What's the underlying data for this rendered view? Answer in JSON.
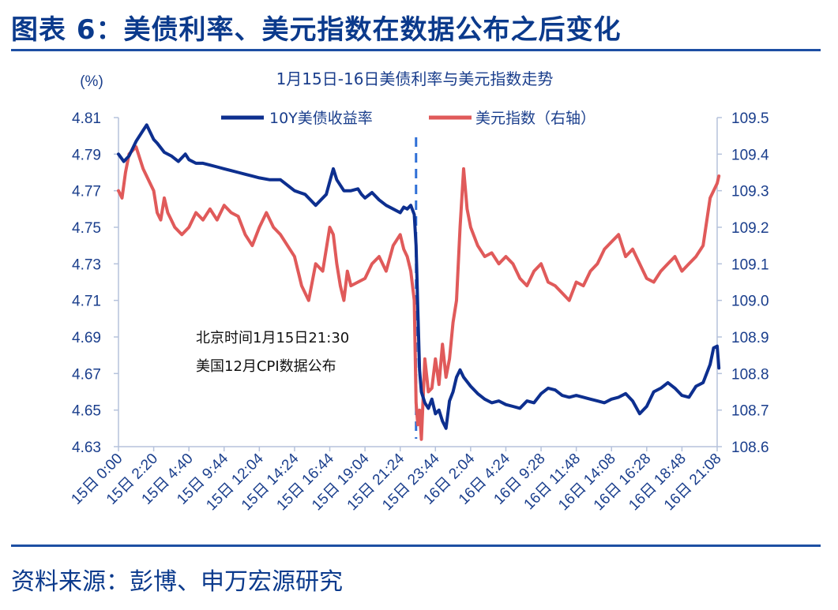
{
  "figure_title": "图表 6：美债利率、美元指数在数据公布之后变化",
  "source_text": "资料来源：彭博、申万宏源研究",
  "colors": {
    "treasury": "#0d2f8f",
    "dollar": "#e05a5a",
    "axis": "#1a3e8c",
    "title": "#0b3a8c",
    "marker": "#2f6fd6"
  },
  "chart_data": {
    "type": "line",
    "title": "1月15日-16日美债利率与美元指数走势",
    "left_unit": "(%)",
    "left_axis": {
      "min": 4.63,
      "max": 4.81,
      "ticks": [
        "4.81",
        "4.79",
        "4.77",
        "4.75",
        "4.73",
        "4.71",
        "4.69",
        "4.67",
        "4.65",
        "4.63"
      ]
    },
    "right_axis": {
      "min": 108.6,
      "max": 109.5,
      "ticks": [
        "109.5",
        "109.4",
        "109.3",
        "109.2",
        "109.1",
        "109.0",
        "108.9",
        "108.8",
        "108.7",
        "108.6"
      ]
    },
    "x_ticks": [
      "15日 0:00",
      "15日 2:20",
      "15日 4:40",
      "15日 9:44",
      "15日 12:04",
      "15日 14:24",
      "15日 16:44",
      "15日 19:04",
      "15日 21:24",
      "15日 23:44",
      "16日 2:04",
      "16日 4:24",
      "16日 9:28",
      "16日 11:48",
      "16日 14:08",
      "16日 16:28",
      "16日 18:48",
      "16日 21:08"
    ],
    "annotation": {
      "x_index": 8.45,
      "lines": [
        "北京时间1月15日21:30",
        "美国12月CPI数据公布"
      ]
    },
    "series": [
      {
        "name": "10Y美债收益率",
        "axis": "left",
        "x": [
          0,
          0.15,
          0.3,
          0.5,
          0.7,
          0.8,
          0.9,
          1.0,
          1.1,
          1.3,
          1.5,
          1.7,
          1.9,
          2.0,
          2.2,
          2.4,
          2.6,
          2.8,
          3.0,
          3.2,
          3.4,
          3.6,
          3.8,
          4.0,
          4.3,
          4.6,
          5.0,
          5.3,
          5.6,
          5.9,
          6.0,
          6.1,
          6.2,
          6.4,
          6.6,
          6.8,
          6.9,
          7.0,
          7.2,
          7.4,
          7.6,
          7.8,
          8.0,
          8.1,
          8.2,
          8.3,
          8.4,
          8.45,
          8.5,
          8.55,
          8.6,
          8.7,
          8.8,
          8.9,
          9.0,
          9.1,
          9.2,
          9.3,
          9.4,
          9.5,
          9.6,
          9.7,
          9.8,
          10.0,
          10.2,
          10.4,
          10.6,
          10.8,
          11.0,
          11.2,
          11.4,
          11.6,
          11.8,
          12.0,
          12.2,
          12.4,
          12.6,
          12.8,
          13.0,
          13.2,
          13.4,
          13.6,
          13.8,
          14.0,
          14.2,
          14.4,
          14.6,
          14.8,
          15.0,
          15.2,
          15.4,
          15.6,
          15.8,
          16.0,
          16.2,
          16.4,
          16.6,
          16.8,
          16.9,
          17.0,
          17.05
        ],
        "values": [
          4.79,
          4.786,
          4.789,
          4.797,
          4.803,
          4.806,
          4.802,
          4.798,
          4.796,
          4.791,
          4.789,
          4.786,
          4.79,
          4.787,
          4.785,
          4.785,
          4.784,
          4.783,
          4.782,
          4.781,
          4.78,
          4.779,
          4.778,
          4.777,
          4.776,
          4.776,
          4.77,
          4.768,
          4.762,
          4.768,
          4.775,
          4.782,
          4.776,
          4.77,
          4.77,
          4.771,
          4.768,
          4.766,
          4.769,
          4.765,
          4.762,
          4.76,
          4.758,
          4.761,
          4.76,
          4.762,
          4.757,
          4.74,
          4.705,
          4.672,
          4.66,
          4.654,
          4.651,
          4.656,
          4.648,
          4.65,
          4.644,
          4.64,
          4.655,
          4.66,
          4.668,
          4.672,
          4.668,
          4.663,
          4.659,
          4.656,
          4.654,
          4.655,
          4.653,
          4.652,
          4.651,
          4.655,
          4.654,
          4.659,
          4.662,
          4.661,
          4.658,
          4.657,
          4.658,
          4.657,
          4.656,
          4.655,
          4.654,
          4.656,
          4.657,
          4.659,
          4.655,
          4.648,
          4.652,
          4.66,
          4.662,
          4.665,
          4.662,
          4.658,
          4.657,
          4.663,
          4.665,
          4.675,
          4.684,
          4.685,
          4.673
        ]
      },
      {
        "name": "美元指数（右轴）",
        "axis": "right",
        "x": [
          0,
          0.1,
          0.2,
          0.3,
          0.5,
          0.7,
          0.9,
          1.0,
          1.1,
          1.2,
          1.3,
          1.4,
          1.5,
          1.6,
          1.8,
          2.0,
          2.2,
          2.4,
          2.6,
          2.8,
          3.0,
          3.2,
          3.4,
          3.6,
          3.8,
          4.0,
          4.2,
          4.4,
          4.6,
          4.8,
          5.0,
          5.2,
          5.4,
          5.6,
          5.8,
          6.0,
          6.1,
          6.2,
          6.3,
          6.4,
          6.5,
          6.6,
          6.8,
          7.0,
          7.2,
          7.4,
          7.6,
          7.8,
          8.0,
          8.1,
          8.2,
          8.3,
          8.4,
          8.45,
          8.5,
          8.55,
          8.6,
          8.7,
          8.8,
          8.9,
          9.0,
          9.1,
          9.2,
          9.3,
          9.4,
          9.5,
          9.6,
          9.7,
          9.8,
          9.9,
          10.0,
          10.2,
          10.4,
          10.6,
          10.8,
          11.0,
          11.2,
          11.4,
          11.6,
          11.8,
          12.0,
          12.2,
          12.4,
          12.6,
          12.8,
          13.0,
          13.2,
          13.4,
          13.6,
          13.8,
          14.0,
          14.2,
          14.4,
          14.6,
          14.8,
          15.0,
          15.2,
          15.4,
          15.6,
          15.8,
          16.0,
          16.2,
          16.4,
          16.6,
          16.8,
          16.9,
          17.0,
          17.05
        ],
        "values": [
          109.3,
          109.28,
          109.35,
          109.4,
          109.42,
          109.36,
          109.32,
          109.3,
          109.24,
          109.22,
          109.28,
          109.24,
          109.22,
          109.2,
          109.18,
          109.2,
          109.24,
          109.22,
          109.25,
          109.22,
          109.26,
          109.24,
          109.23,
          109.18,
          109.15,
          109.2,
          109.24,
          109.2,
          109.18,
          109.15,
          109.12,
          109.04,
          109.0,
          109.1,
          109.08,
          109.2,
          109.18,
          109.1,
          109.04,
          109.0,
          109.08,
          109.04,
          109.05,
          109.06,
          109.1,
          109.12,
          109.08,
          109.15,
          109.18,
          109.14,
          109.12,
          109.08,
          109.0,
          108.72,
          108.66,
          108.7,
          108.62,
          108.84,
          108.75,
          108.76,
          108.84,
          108.77,
          108.88,
          108.79,
          108.84,
          108.94,
          109.0,
          109.2,
          109.36,
          109.25,
          109.2,
          109.15,
          109.12,
          109.13,
          109.1,
          109.12,
          109.1,
          109.06,
          109.04,
          109.08,
          109.1,
          109.05,
          109.04,
          109.02,
          109.0,
          109.05,
          109.04,
          109.08,
          109.1,
          109.14,
          109.16,
          109.18,
          109.12,
          109.14,
          109.1,
          109.06,
          109.05,
          109.08,
          109.1,
          109.12,
          109.08,
          109.1,
          109.12,
          109.15,
          109.28,
          109.3,
          109.32,
          109.34
        ]
      }
    ]
  }
}
